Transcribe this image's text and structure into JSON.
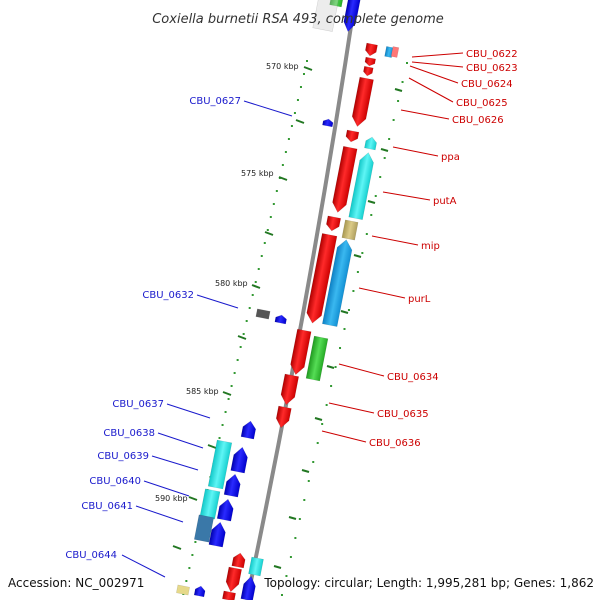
{
  "title": "Coxiella burnetii RSA 493, complete genome",
  "footer": {
    "accession": "Accession: NC_002971",
    "topology": "Topology: circular; Length: 1,995,281 bp; Genes: 1,862"
  },
  "scale_labels": [
    "570 kbp",
    "575 kbp",
    "580 kbp",
    "585 kbp",
    "590 kbp"
  ],
  "genes_right": [
    "CBU_0622",
    "CBU_0623",
    "CBU_0624",
    "CBU_0625",
    "CBU_0626",
    "ppa",
    "putA",
    "mip",
    "purL",
    "CBU_0634",
    "CBU_0635",
    "CBU_0636"
  ],
  "genes_left": [
    "CBU_0627",
    "CBU_0632",
    "CBU_0637",
    "CBU_0638",
    "CBU_0639",
    "CBU_0640",
    "CBU_0641",
    "CBU_0644"
  ],
  "colors": {
    "forward_cds": "#ee0000",
    "reverse_cds": "#1111ee",
    "cyan_feature": "#22e5e5",
    "blue_feature": "#1aa3e8",
    "green_feature": "#33cc33",
    "khaki_feature": "#c8b870",
    "label_right": "#cc0000",
    "label_left": "#1a1acc"
  }
}
